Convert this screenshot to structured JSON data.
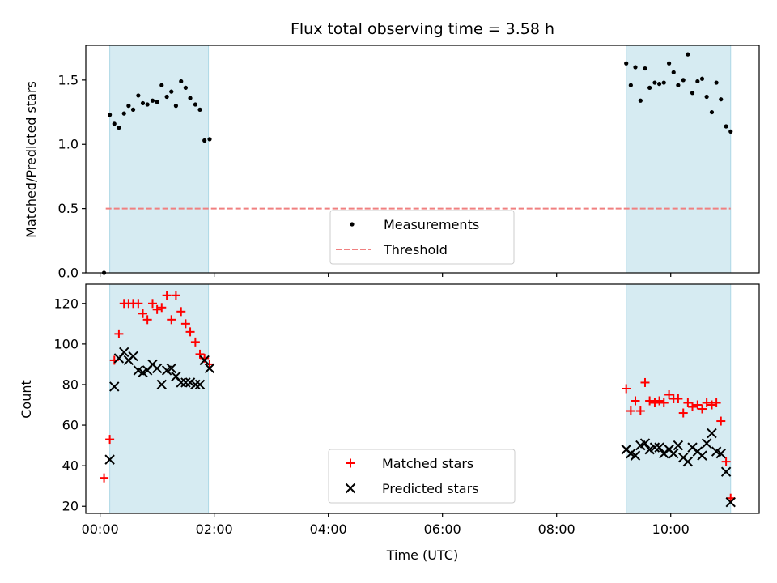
{
  "chart_data": [
    {
      "type": "scatter",
      "title": "Flux total observing time = 3.58 h",
      "xlabel": "",
      "ylabel": "Matched/Predicted stars",
      "xlim": [
        -0.25,
        11.55
      ],
      "ylim": [
        0,
        1.77
      ],
      "yticks": [
        0,
        0.5,
        1.0,
        1.5
      ],
      "ytick_labels": [
        "0.0",
        "0.5",
        "1.0",
        "1.5"
      ],
      "xticks": [
        0,
        2,
        4,
        6,
        8,
        10
      ],
      "shaded_intervals": [
        [
          0.17,
          1.9
        ],
        [
          9.22,
          11.05
        ]
      ],
      "threshold": {
        "y": 0.5,
        "x_range": [
          0.1,
          11.05
        ],
        "color": "#f08080"
      },
      "legend": {
        "placement": "lower center",
        "entries": [
          "Measurements",
          "Threshold"
        ]
      },
      "series": [
        {
          "name": "Measurements",
          "marker": "dot",
          "color": "#000000",
          "x": [
            0.07,
            0.17,
            0.25,
            0.33,
            0.42,
            0.5,
            0.58,
            0.67,
            0.75,
            0.83,
            0.92,
            1.0,
            1.08,
            1.17,
            1.25,
            1.33,
            1.42,
            1.5,
            1.58,
            1.67,
            1.75,
            1.83,
            1.92,
            9.22,
            9.3,
            9.38,
            9.47,
            9.55,
            9.63,
            9.72,
            9.8,
            9.88,
            9.97,
            10.05,
            10.13,
            10.22,
            10.3,
            10.38,
            10.47,
            10.55,
            10.63,
            10.72,
            10.8,
            10.88,
            10.97,
            11.05
          ],
          "y": [
            0.0,
            1.23,
            1.16,
            1.13,
            1.24,
            1.3,
            1.27,
            1.38,
            1.32,
            1.31,
            1.34,
            1.33,
            1.46,
            1.37,
            1.41,
            1.3,
            1.49,
            1.44,
            1.36,
            1.31,
            1.27,
            1.03,
            1.04,
            1.63,
            1.46,
            1.6,
            1.34,
            1.59,
            1.44,
            1.48,
            1.47,
            1.48,
            1.63,
            1.56,
            1.46,
            1.5,
            1.7,
            1.4,
            1.49,
            1.51,
            1.37,
            1.25,
            1.48,
            1.35,
            1.14,
            1.1
          ]
        }
      ]
    },
    {
      "type": "scatter",
      "title": "",
      "xlabel": "Time (UTC)",
      "ylabel": "Count",
      "xlim": [
        -0.25,
        11.55
      ],
      "ylim": [
        16.5,
        129.5
      ],
      "yticks": [
        20,
        40,
        60,
        80,
        100,
        120
      ],
      "ytick_labels": [
        "20",
        "40",
        "60",
        "80",
        "100",
        "120"
      ],
      "xticks": [
        0,
        2,
        4,
        6,
        8,
        10
      ],
      "xtick_labels": [
        "00:00",
        "02:00",
        "04:00",
        "06:00",
        "08:00",
        "10:00"
      ],
      "shaded_intervals": [
        [
          0.17,
          1.9
        ],
        [
          9.22,
          11.05
        ]
      ],
      "legend": {
        "placement": "lower center",
        "entries": [
          "Matched stars",
          "Predicted stars"
        ]
      },
      "series": [
        {
          "name": "Matched stars",
          "marker": "plus",
          "color": "#ff0000",
          "x": [
            0.07,
            0.17,
            0.25,
            0.33,
            0.42,
            0.5,
            0.58,
            0.67,
            0.75,
            0.83,
            0.92,
            1.0,
            1.08,
            1.17,
            1.25,
            1.33,
            1.42,
            1.5,
            1.58,
            1.67,
            1.75,
            1.83,
            1.92,
            9.22,
            9.3,
            9.38,
            9.47,
            9.55,
            9.63,
            9.72,
            9.8,
            9.88,
            9.97,
            10.05,
            10.13,
            10.22,
            10.3,
            10.38,
            10.47,
            10.55,
            10.63,
            10.72,
            10.8,
            10.88,
            10.97,
            11.05
          ],
          "y": [
            34,
            53,
            92,
            105,
            120,
            120,
            120,
            120,
            115,
            112,
            120,
            117,
            118,
            124,
            112,
            124,
            116,
            110,
            106,
            101,
            95,
            93,
            90,
            78,
            67,
            72,
            67,
            81,
            72,
            71,
            72,
            71,
            75,
            73,
            73,
            66,
            71,
            69,
            70,
            68,
            71,
            70,
            71,
            62,
            42,
            24
          ]
        },
        {
          "name": "Predicted stars",
          "marker": "x",
          "color": "#000000",
          "x": [
            0.17,
            0.25,
            0.33,
            0.42,
            0.5,
            0.58,
            0.67,
            0.75,
            0.83,
            0.92,
            1.0,
            1.08,
            1.17,
            1.25,
            1.33,
            1.42,
            1.5,
            1.58,
            1.67,
            1.75,
            1.83,
            1.92,
            9.22,
            9.3,
            9.38,
            9.47,
            9.55,
            9.63,
            9.72,
            9.8,
            9.88,
            9.97,
            10.05,
            10.13,
            10.22,
            10.3,
            10.38,
            10.47,
            10.55,
            10.63,
            10.72,
            10.8,
            10.88,
            10.97,
            11.05
          ],
          "y": [
            43,
            79,
            93,
            96,
            92,
            94,
            87,
            86,
            87,
            90,
            88,
            80,
            87,
            88,
            84,
            81,
            81,
            81,
            80,
            80,
            92,
            88,
            48,
            46,
            45,
            50,
            51,
            48,
            49,
            49,
            46,
            48,
            46,
            50,
            44,
            42,
            49,
            47,
            45,
            51,
            56,
            47,
            46,
            37,
            22
          ]
        }
      ]
    }
  ]
}
